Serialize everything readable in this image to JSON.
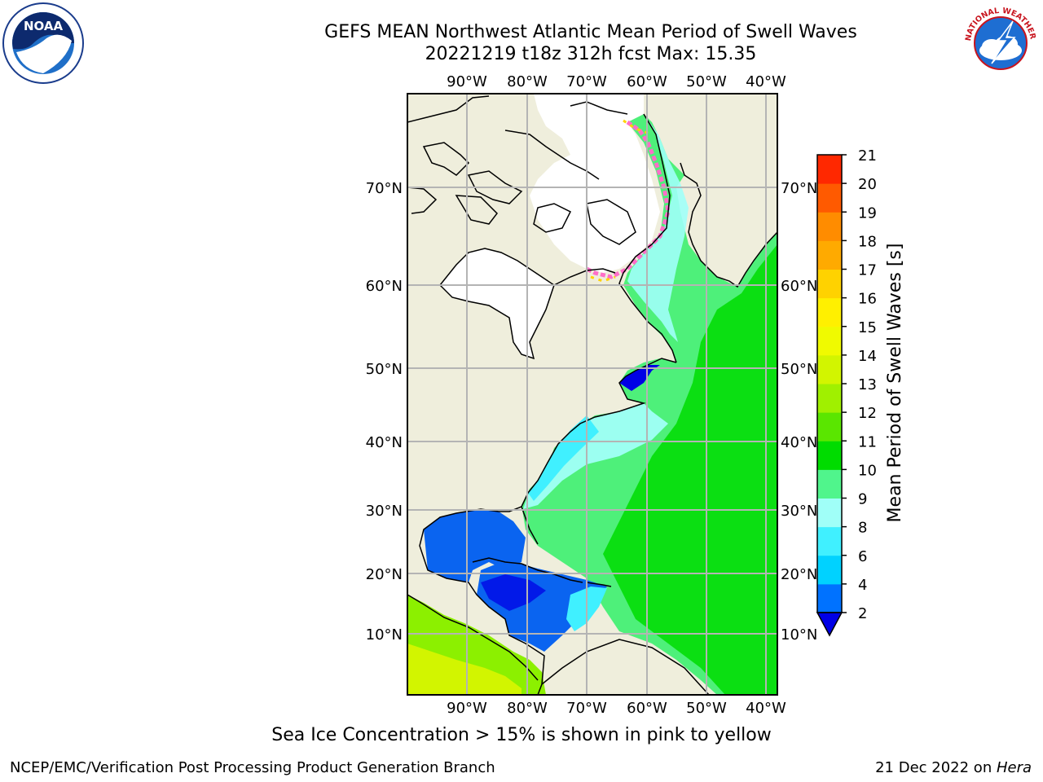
{
  "header": {
    "title_line1": "GEFS MEAN Northwest Atlantic Mean Period of Swell Waves",
    "title_line2": "20221219 t18z 312h fcst   Max: 15.35"
  },
  "logos": {
    "left": "noaa-logo",
    "right": "national-weather-service-logo",
    "left_text": "NOAA",
    "right_text": "NATIONAL WEATHER SERVICE"
  },
  "map": {
    "lon_labels": [
      "90°W",
      "80°W",
      "70°W",
      "60°W",
      "50°W",
      "40°W"
    ],
    "lat_labels": [
      "70°N",
      "60°N",
      "50°N",
      "40°N",
      "30°N",
      "20°N",
      "10°N"
    ],
    "land_color": "#efeedc",
    "ice_free_color": "#ffffff"
  },
  "colorbar": {
    "label": "Mean Period of Swell Waves [s]",
    "ticks": [
      "2",
      "4",
      "6",
      "8",
      "9",
      "10",
      "11",
      "12",
      "13",
      "14",
      "15",
      "16",
      "17",
      "18",
      "19",
      "20",
      "21"
    ],
    "colors": [
      "#0072ff",
      "#00d2ff",
      "#40f0ff",
      "#a0fff8",
      "#50f58c",
      "#00dc00",
      "#5ae600",
      "#a0f000",
      "#d2f500",
      "#f0fa00",
      "#fff000",
      "#ffd200",
      "#ffaa00",
      "#ff8c00",
      "#ff5a00",
      "#ff2800",
      "#ff0000"
    ],
    "under_color": "#0000e6"
  },
  "note": "Sea Ice Concentration > 15% is shown in pink to yellow",
  "footer": {
    "left": "NCEP/EMC/Verification Post Processing Product Generation Branch",
    "right_prefix": "21 Dec 2022 on ",
    "right_italic": "Hera"
  }
}
